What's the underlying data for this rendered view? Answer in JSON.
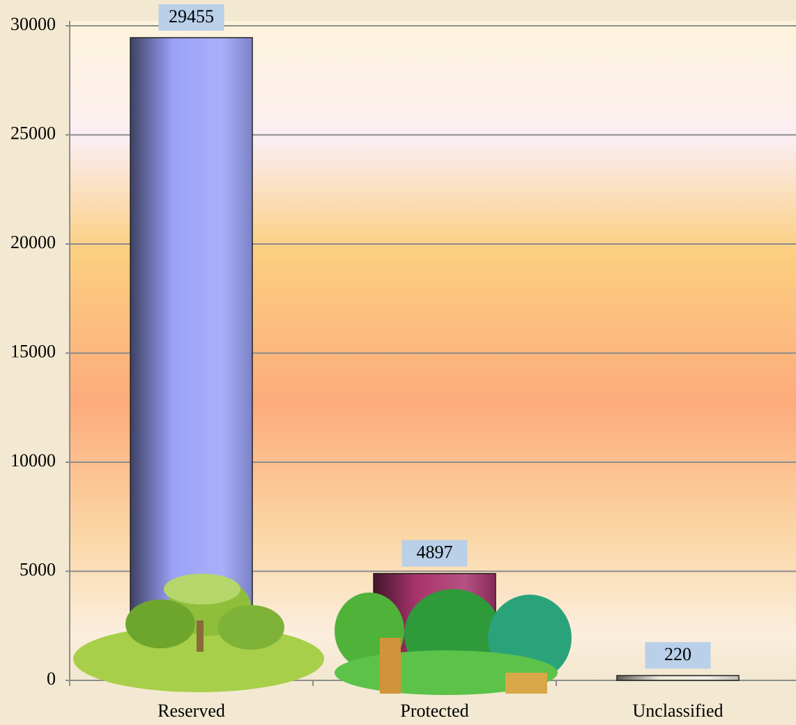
{
  "chart_data": {
    "type": "bar",
    "categories": [
      "Reserved",
      "Protected",
      "Unclassified"
    ],
    "values": [
      29455,
      4897,
      220
    ],
    "colors": [
      "#9aa2f8",
      "#a8346c",
      "#ece8da"
    ],
    "ylim": [
      0,
      30000
    ],
    "yticks": [
      0,
      5000,
      10000,
      15000,
      20000,
      25000,
      30000
    ],
    "grid": true
  }
}
